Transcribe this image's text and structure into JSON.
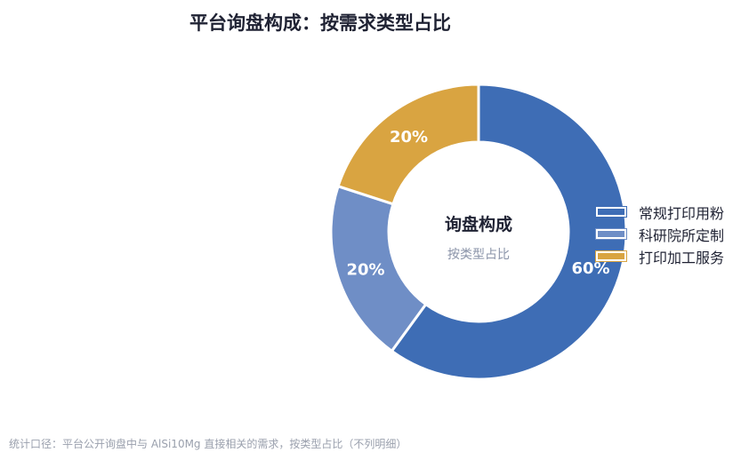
{
  "title": "平台询盘构成：按需求类型占比",
  "center": {
    "main": "询盘构成",
    "sub": "按类型占比"
  },
  "footnote": "统计口径：平台公开询盘中与 AlSi10Mg 直接相关的需求，按类型占比（不列明细）",
  "chart_data": {
    "type": "pie",
    "variant": "donut",
    "title": "平台询盘构成：按需求类型占比",
    "legend_position": "right",
    "series": [
      {
        "name": "常规打印用粉",
        "value": 60,
        "label": "60%",
        "color": "#3e6db5"
      },
      {
        "name": "科研院所定制",
        "value": 20,
        "label": "20%",
        "color": "#6f8ec6"
      },
      {
        "name": "打印加工服务",
        "value": 20,
        "label": "20%",
        "color": "#d9a441"
      }
    ]
  }
}
